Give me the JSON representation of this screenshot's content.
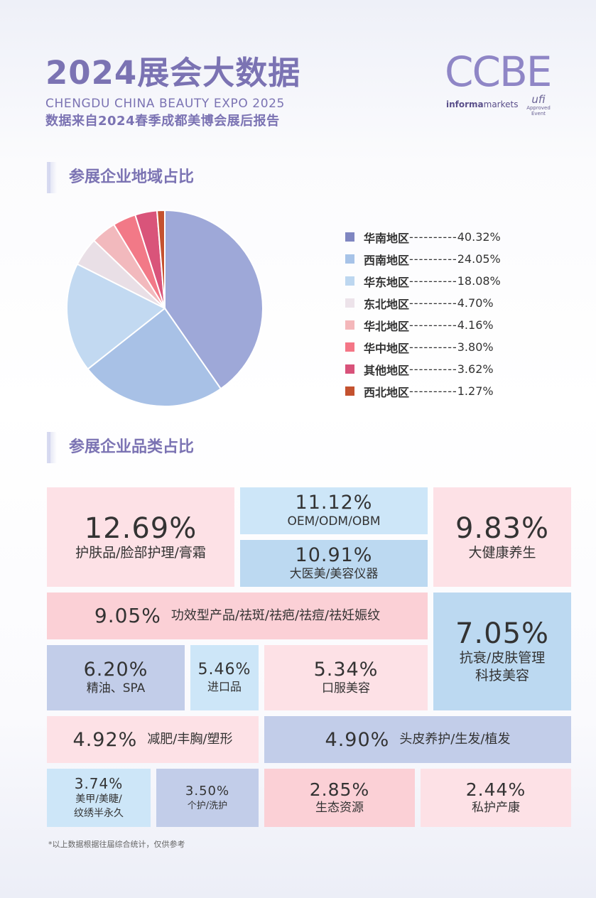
{
  "header": {
    "title": "2024展会大数据",
    "subtitle_en": "CHENGDU CHINA BEAUTY EXPO 2025",
    "subtitle_cn": "数据来自2024春季成都美博会展后报告"
  },
  "logo": {
    "text": "CCBE",
    "informa_bold": "informa",
    "informa_rest": "markets",
    "ufi": "ufi",
    "ufi_line1": "Approved",
    "ufi_line2": "Event"
  },
  "sections": {
    "region_title": "参展企业地域占比",
    "category_title": "参展企业品类占比"
  },
  "colors": {
    "accent": "#7b73b3",
    "pink": "#fde1e6",
    "rose": "#fbd0d6",
    "light_blue": "#cde6f8",
    "mid_blue": "#bcd9f1",
    "lavender": "#c2cde9"
  },
  "chart_data": [
    {
      "type": "pie",
      "title": "参展企业地域占比",
      "legend_placement": "right",
      "slices": [
        {
          "name": "华南地区",
          "value": 40.32,
          "label": "40.32%",
          "color": "#9ea8d8"
        },
        {
          "name": "西南地区",
          "value": 24.05,
          "label": "24.05%",
          "color": "#a8c1e6"
        },
        {
          "name": "华东地区",
          "value": 18.08,
          "label": "18.08%",
          "color": "#c2d9f1"
        },
        {
          "name": "东北地区",
          "value": 4.7,
          "label": "4.70%",
          "color": "#e9dfe6"
        },
        {
          "name": "华北地区",
          "value": 4.16,
          "label": "4.16%",
          "color": "#f2b9bd"
        },
        {
          "name": "华中地区",
          "value": 3.8,
          "label": "3.80%",
          "color": "#f27987"
        },
        {
          "name": "其他地区",
          "value": 3.62,
          "label": "3.62%",
          "color": "#d9547a"
        },
        {
          "name": "西北地区",
          "value": 1.27,
          "label": "1.27%",
          "color": "#c4522f"
        }
      ],
      "legend_swatch_colors": [
        "#7f86c1",
        "#a7c3e8",
        "#bdd7f0",
        "#ede3ea",
        "#f4b7ba",
        "#f47686",
        "#d8527a",
        "#c4522f"
      ]
    },
    {
      "type": "table",
      "title": "参展企业品类占比",
      "tiles": [
        {
          "value": 12.69,
          "pct": "12.69%",
          "label": "护肤品/脸部护理/膏霜"
        },
        {
          "value": 11.12,
          "pct": "11.12%",
          "label": "OEM/ODM/OBM"
        },
        {
          "value": 10.91,
          "pct": "10.91%",
          "label": "大医美/美容仪器"
        },
        {
          "value": 9.83,
          "pct": "9.83%",
          "label": "大健康养生"
        },
        {
          "value": 9.05,
          "pct": "9.05%",
          "label": "功效型产品/祛斑/祛疤/祛痘/祛妊娠纹"
        },
        {
          "value": 7.05,
          "pct": "7.05%",
          "label": "抗衰/皮肤管理",
          "label2": "科技美容"
        },
        {
          "value": 6.2,
          "pct": "6.20%",
          "label": "精油、SPA"
        },
        {
          "value": 5.46,
          "pct": "5.46%",
          "label": "进口品"
        },
        {
          "value": 5.34,
          "pct": "5.34%",
          "label": "口服美容"
        },
        {
          "value": 4.92,
          "pct": "4.92%",
          "label": "减肥/丰胸/塑形"
        },
        {
          "value": 4.9,
          "pct": "4.90%",
          "label": "头皮养护/生发/植发"
        },
        {
          "value": 3.74,
          "pct": "3.74%",
          "label": "美甲/美睫/",
          "label2": "纹绣半永久"
        },
        {
          "value": 3.5,
          "pct": "3.50%",
          "label": "个护/洗护"
        },
        {
          "value": 2.85,
          "pct": "2.85%",
          "label": "生态资源"
        },
        {
          "value": 2.44,
          "pct": "2.44%",
          "label": "私护产康"
        }
      ]
    }
  ],
  "footnote": "*以上数据根据往届综合统计，仅供参考"
}
